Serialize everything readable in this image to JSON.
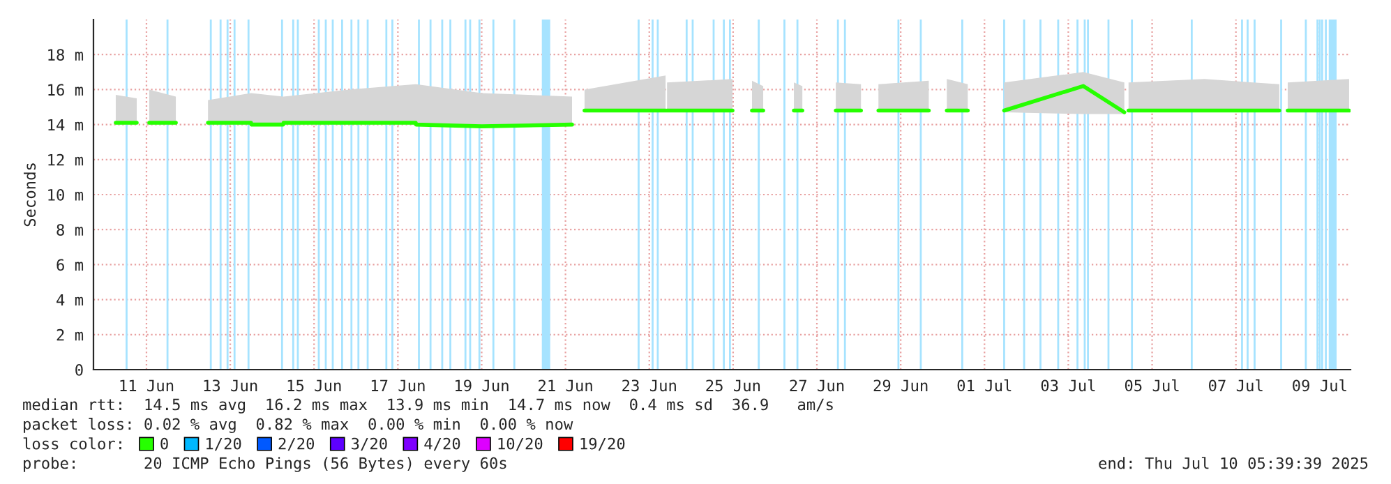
{
  "chart_data": {
    "type": "line",
    "ylabel": "Seconds",
    "xlim": [
      "2025-06-10T05:39",
      "2025-07-10T05:39"
    ],
    "ylim": [
      0,
      20
    ],
    "yticks": [
      0,
      {
        "value": 2,
        "label": "2 m"
      },
      {
        "value": 4,
        "label": "4 m"
      },
      {
        "value": 6,
        "label": "6 m"
      },
      {
        "value": 8,
        "label": "8 m"
      },
      {
        "value": 10,
        "label": "10 m"
      },
      {
        "value": 12,
        "label": "12 m"
      },
      {
        "value": 14,
        "label": "14 m"
      },
      {
        "value": 16,
        "label": "16 m"
      },
      {
        "value": 18,
        "label": "18 m"
      }
    ],
    "xticks": [
      {
        "value": "2025-06-11T12:00",
        "label": "11 Jun"
      },
      {
        "value": "2025-06-13T12:00",
        "label": "13 Jun"
      },
      {
        "value": "2025-06-15T12:00",
        "label": "15 Jun"
      },
      {
        "value": "2025-06-17T12:00",
        "label": "17 Jun"
      },
      {
        "value": "2025-06-19T12:00",
        "label": "19 Jun"
      },
      {
        "value": "2025-06-21T12:00",
        "label": "21 Jun"
      },
      {
        "value": "2025-06-23T12:00",
        "label": "23 Jun"
      },
      {
        "value": "2025-06-25T12:00",
        "label": "25 Jun"
      },
      {
        "value": "2025-06-27T12:00",
        "label": "27 Jun"
      },
      {
        "value": "2025-06-29T12:00",
        "label": "29 Jun"
      },
      {
        "value": "2025-07-01T12:00",
        "label": "01 Jul"
      },
      {
        "value": "2025-07-03T12:00",
        "label": "03 Jul"
      },
      {
        "value": "2025-07-05T12:00",
        "label": "05 Jul"
      },
      {
        "value": "2025-07-07T12:00",
        "label": "07 Jul"
      },
      {
        "value": "2025-07-09T12:00",
        "label": "09 Jul"
      }
    ],
    "grid": true,
    "legend": "bottom",
    "legend_title": "loss color:",
    "series": [
      {
        "name": "0",
        "color": "#26ff00",
        "x": [
          "2025-06-10T18:25",
          "2025-06-11T06:25",
          "2025-06-11T10:00",
          "2025-06-11T13:35",
          "2025-06-12T04:50",
          "2025-06-12T14:00",
          "2025-06-12T23:15",
          "2025-06-13T23:55",
          "2025-06-14T00:05",
          "2025-06-14T18:20",
          "2025-06-14T18:30",
          "2025-06-16T08:00",
          "2025-06-17T22:15",
          "2025-06-17T22:25",
          "2025-06-19T12:00",
          "2025-06-21T15:45",
          "2025-06-21T19:00",
          "2025-06-21T22:55",
          "2025-06-23T21:20",
          "2025-06-23T21:45",
          "2025-06-23T22:10",
          "2025-06-25T11:40",
          "2025-06-25T17:00",
          "2025-06-25T22:50",
          "2025-06-26T05:15",
          "2025-06-26T14:00",
          "2025-06-26T22:50",
          "2025-06-27T03:40",
          "2025-06-27T13:00",
          "2025-06-27T22:50",
          "2025-06-28T13:15",
          "2025-06-28T18:00",
          "2025-06-28T23:15",
          "2025-06-30T04:05",
          "2025-06-30T09:00",
          "2025-06-30T14:25",
          "2025-07-01T02:25",
          "2025-07-01T13:00",
          "2025-07-01T23:15",
          "2025-07-03T20:35",
          "2025-07-04T20:05",
          "2025-07-04T21:15",
          "2025-07-04T22:30",
          "2025-07-06T18:00",
          "2025-07-08T12:50",
          "2025-07-08T15:00",
          "2025-07-08T17:40",
          "2025-07-10T04:50"
        ],
        "values": [
          14.1,
          14.1,
          null,
          14.1,
          14.1,
          null,
          14.1,
          14.1,
          14.0,
          14.0,
          14.1,
          14.1,
          14.1,
          14.0,
          13.9,
          14.0,
          null,
          14.8,
          14.8,
          null,
          14.8,
          14.8,
          null,
          14.8,
          14.8,
          null,
          14.8,
          14.8,
          null,
          14.8,
          14.8,
          null,
          14.8,
          14.8,
          null,
          14.8,
          14.8,
          null,
          14.8,
          16.2,
          14.7,
          null,
          14.8,
          14.8,
          14.8,
          null,
          14.8,
          14.8
        ],
        "lower": [
          14.0,
          14.0,
          null,
          14.0,
          14.0,
          null,
          14.0,
          14.0,
          13.9,
          13.9,
          14.0,
          14.0,
          14.0,
          13.9,
          13.9,
          13.9,
          null,
          14.7,
          14.7,
          null,
          14.7,
          14.7,
          null,
          14.7,
          14.7,
          null,
          14.7,
          14.7,
          null,
          14.7,
          14.7,
          null,
          14.7,
          14.7,
          null,
          14.7,
          14.7,
          null,
          14.7,
          14.6,
          14.6,
          null,
          14.7,
          14.7,
          14.7,
          null,
          14.7,
          14.7
        ],
        "upper": [
          15.7,
          15.5,
          null,
          16.0,
          15.6,
          null,
          15.4,
          15.8,
          15.8,
          15.6,
          15.6,
          16.0,
          16.3,
          16.3,
          15.8,
          15.6,
          null,
          16.0,
          16.8,
          null,
          16.4,
          16.6,
          null,
          16.5,
          16.2,
          null,
          16.4,
          16.2,
          null,
          16.4,
          16.3,
          null,
          16.3,
          16.5,
          null,
          16.6,
          16.3,
          null,
          16.4,
          17.0,
          16.4,
          null,
          16.4,
          16.6,
          16.3,
          null,
          16.4,
          16.6
        ]
      },
      {
        "name": "1/20",
        "color": "#00b8ff"
      },
      {
        "name": "2/20",
        "color": "#0059ff"
      },
      {
        "name": "3/20",
        "color": "#5e00ff"
      },
      {
        "name": "4/20",
        "color": "#7e00ff"
      },
      {
        "name": "10/20",
        "color": "#dd00ff"
      },
      {
        "name": "19/20",
        "color": "#ff0000"
      }
    ],
    "ref_lines": [
      {
        "axis": "x",
        "value": "2025-06-11T00:37",
        "color": "#a6e3ff"
      },
      {
        "axis": "x",
        "value": "2025-06-12T00:03",
        "color": "#a6e3ff"
      },
      {
        "axis": "x",
        "value": "2025-06-13T00:51",
        "color": "#a6e3ff"
      },
      {
        "axis": "x",
        "value": "2025-06-13T06:27",
        "color": "#a6e3ff"
      },
      {
        "axis": "x",
        "value": "2025-06-13T10:27",
        "color": "#a6e3ff"
      },
      {
        "axis": "x",
        "value": "2025-06-13T14:27",
        "color": "#a6e3ff"
      },
      {
        "axis": "x",
        "value": "2025-06-13T22:27",
        "color": "#a6e3ff"
      },
      {
        "axis": "x",
        "value": "2025-06-14T17:39",
        "color": "#a6e3ff"
      },
      {
        "axis": "x",
        "value": "2025-06-15T00:03",
        "color": "#a6e3ff"
      },
      {
        "axis": "x",
        "value": "2025-06-15T02:42",
        "color": "#a6e3ff"
      },
      {
        "axis": "x",
        "value": "2025-06-15T14:42",
        "color": "#a6e3ff"
      },
      {
        "axis": "x",
        "value": "2025-06-15T18:42",
        "color": "#a6e3ff"
      },
      {
        "axis": "x",
        "value": "2025-06-15T22:42",
        "color": "#a6e3ff"
      },
      {
        "axis": "x",
        "value": "2025-06-16T04:03",
        "color": "#a6e3ff"
      },
      {
        "axis": "x",
        "value": "2025-06-16T09:24",
        "color": "#a6e3ff"
      },
      {
        "axis": "x",
        "value": "2025-06-16T13:24",
        "color": "#a6e3ff"
      },
      {
        "axis": "x",
        "value": "2025-06-16T18:42",
        "color": "#a6e3ff"
      },
      {
        "axis": "x",
        "value": "2025-06-17T05:24",
        "color": "#a6e3ff"
      },
      {
        "axis": "x",
        "value": "2025-06-17T08:51",
        "color": "#a6e3ff"
      },
      {
        "axis": "x",
        "value": "2025-06-18T00:03",
        "color": "#a6e3ff"
      },
      {
        "axis": "x",
        "value": "2025-06-18T06:42",
        "color": "#a6e3ff"
      },
      {
        "axis": "x",
        "value": "2025-06-18T13:24",
        "color": "#a6e3ff"
      },
      {
        "axis": "x",
        "value": "2025-06-18T18:03",
        "color": "#a6e3ff"
      },
      {
        "axis": "x",
        "value": "2025-06-19T02:42",
        "color": "#a6e3ff"
      },
      {
        "axis": "x",
        "value": "2025-06-19T05:24",
        "color": "#a6e3ff"
      },
      {
        "axis": "x",
        "value": "2025-06-19T10:42",
        "color": "#a6e3ff"
      },
      {
        "axis": "x",
        "value": "2025-06-19T18:42",
        "color": "#a6e3ff"
      },
      {
        "axis": "x",
        "value": "2025-06-20T06:42",
        "color": "#a6e3ff"
      },
      {
        "axis": "x",
        "value": "2025-06-23T05:54",
        "color": "#a6e3ff"
      },
      {
        "axis": "x",
        "value": "2025-06-23T13:54",
        "color": "#a6e3ff"
      },
      {
        "axis": "x",
        "value": "2025-06-23T16:51",
        "color": "#a6e3ff"
      },
      {
        "axis": "x",
        "value": "2025-06-24T09:24",
        "color": "#a6e3ff"
      },
      {
        "axis": "x",
        "value": "2025-06-24T12:51",
        "color": "#a6e3ff"
      },
      {
        "axis": "x",
        "value": "2025-06-25T00:51",
        "color": "#a6e3ff"
      },
      {
        "axis": "x",
        "value": "2025-06-25T06:42",
        "color": "#a6e3ff"
      },
      {
        "axis": "x",
        "value": "2025-06-25T10:12",
        "color": "#a6e3ff"
      },
      {
        "axis": "x",
        "value": "2025-06-26T02:42",
        "color": "#a6e3ff"
      },
      {
        "axis": "x",
        "value": "2025-06-26T17:24",
        "color": "#a6e3ff"
      },
      {
        "axis": "x",
        "value": "2025-06-27T00:51",
        "color": "#a6e3ff"
      },
      {
        "axis": "x",
        "value": "2025-06-28T00:03",
        "color": "#a6e3ff"
      },
      {
        "axis": "x",
        "value": "2025-06-28T04:03",
        "color": "#a6e3ff"
      },
      {
        "axis": "x",
        "value": "2025-06-29T10:42",
        "color": "#a6e3ff"
      },
      {
        "axis": "x",
        "value": "2025-06-29T23:30",
        "color": "#a6e3ff"
      },
      {
        "axis": "x",
        "value": "2025-06-30T23:15",
        "color": "#a6e3ff"
      },
      {
        "axis": "x",
        "value": "2025-07-01T23:15",
        "color": "#a6e3ff"
      },
      {
        "axis": "x",
        "value": "2025-07-02T10:42",
        "color": "#a6e3ff"
      },
      {
        "axis": "x",
        "value": "2025-07-02T20:03",
        "color": "#a6e3ff"
      },
      {
        "axis": "x",
        "value": "2025-07-03T06:12",
        "color": "#a6e3ff"
      },
      {
        "axis": "x",
        "value": "2025-07-03T17:15",
        "color": "#a6e3ff"
      },
      {
        "axis": "x",
        "value": "2025-07-03T21:24",
        "color": "#a6e3ff"
      },
      {
        "axis": "x",
        "value": "2025-07-03T23:15",
        "color": "#a6e3ff"
      },
      {
        "axis": "x",
        "value": "2025-07-04T11:00",
        "color": "#a6e3ff"
      },
      {
        "axis": "x",
        "value": "2025-07-05T00:27",
        "color": "#a6e3ff"
      },
      {
        "axis": "x",
        "value": "2025-07-06T10:42",
        "color": "#a6e3ff"
      },
      {
        "axis": "x",
        "value": "2025-07-07T15:30",
        "color": "#a6e3ff"
      },
      {
        "axis": "x",
        "value": "2025-07-07T18:42",
        "color": "#a6e3ff"
      },
      {
        "axis": "x",
        "value": "2025-07-07T22:42",
        "color": "#a6e3ff"
      },
      {
        "axis": "x",
        "value": "2025-07-08T13:54",
        "color": "#a6e3ff"
      },
      {
        "axis": "x",
        "value": "2025-07-09T04:03",
        "color": "#a6e3ff"
      },
      {
        "axis": "x",
        "value": "2025-07-09T10:42",
        "color": "#a6e3ff"
      },
      {
        "axis": "x",
        "value": "2025-07-09T12:03",
        "color": "#a6e3ff"
      },
      {
        "axis": "x",
        "value": "2025-07-09T13:24",
        "color": "#a6e3ff"
      },
      {
        "axis": "x",
        "value": "2025-07-09T15:30",
        "color": "#a6e3ff"
      }
    ],
    "bands": [
      {
        "axis": "x",
        "from": "2025-06-20T22:27",
        "to": "2025-06-21T03:15",
        "color": "#a6e3ff"
      },
      {
        "axis": "x",
        "from": "2025-07-09T17:10",
        "to": "2025-07-09T21:40",
        "color": "#a6e3ff"
      }
    ],
    "annotations": [
      "median rtt:  14.5 ms avg  16.2 ms max  13.9 ms min  14.7 ms now  0.4 ms sd  36.9   am/s",
      "packet loss: 0.02 % avg  0.82 % max  0.00 % min  0.00 % now",
      "probe:       20 ICMP Echo Pings (56 Bytes) every 60s",
      "end: Thu Jul 10 05:39:39 2025"
    ]
  }
}
